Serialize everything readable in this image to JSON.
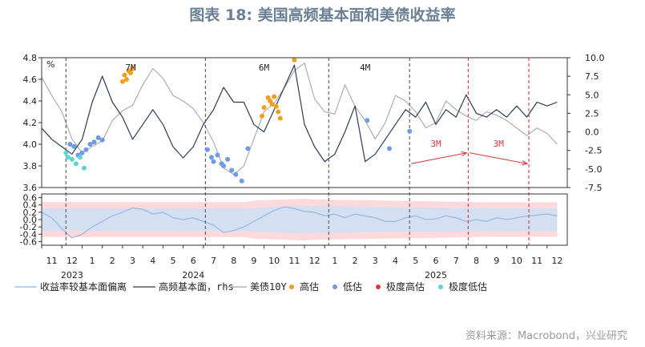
{
  "title": "图表 18: 美国高频基本面和美债收益率",
  "source": "资料来源：Macrobond，兴业研究",
  "colors": {
    "spread": "#8fb3e8",
    "fundamental": "#2b3a55",
    "treasury": "#a8a8a8",
    "high": "#f0a020",
    "low": "#6f9ae8",
    "extreme_high": "#d9363e",
    "extreme_low": "#5fd4d4",
    "band_inner": "#d4e0f2",
    "band_outer": "#fbd9dd"
  },
  "chart_data": {
    "type": "line",
    "time_unit": "months",
    "x_ticks": {
      "months": [
        "11",
        "12",
        "1",
        "2",
        "3",
        "4",
        "5",
        "6",
        "7",
        "8",
        "9",
        "10",
        "11",
        "12",
        "1",
        "2",
        "3",
        "4",
        "5",
        "6",
        "7",
        "8",
        "9",
        "10",
        "11",
        "12"
      ],
      "years": [
        "2023",
        "2024",
        "2025"
      ]
    },
    "annotations": [
      "7M",
      "6M",
      "4M",
      "3M",
      "3M"
    ],
    "legend": [
      "收益率较基本面偏离",
      "高频基本面，rhs",
      "美债10Y",
      "高估",
      "低估",
      "极度高估",
      "极度低估"
    ],
    "top_panel": {
      "left_axis": {
        "label": "%",
        "ylim": [
          3.6,
          4.8
        ],
        "ticks": [
          "4.8",
          "4.6",
          "4.4",
          "4.2",
          "4.0",
          "3.8",
          "3.6"
        ]
      },
      "right_axis": {
        "ylim": [
          -7.5,
          10.0
        ],
        "ticks": [
          "10.0",
          "7.5",
          "5.0",
          "2.5",
          "0.0",
          "-2.5",
          "-5.0",
          "-7.5"
        ]
      },
      "series": [
        {
          "name": "美债10Y",
          "axis": "left",
          "x": [
            0,
            0.5,
            1,
            1.5,
            2,
            2.5,
            3,
            3.5,
            4,
            4.5,
            5,
            5.5,
            6,
            6.5,
            7,
            7.5,
            8,
            8.5,
            9,
            9.5,
            10,
            10.5,
            11,
            11.5,
            12,
            12.5,
            13,
            13.5,
            14,
            14.5,
            15,
            15.5,
            16,
            16.5,
            17,
            17.5,
            18,
            18.5,
            19,
            19.5,
            20,
            20.5,
            21,
            21.5,
            22,
            22.5,
            23,
            23.5,
            24,
            24.5,
            25,
            25.5
          ],
          "y": [
            4.62,
            4.45,
            4.3,
            4.05,
            3.92,
            3.98,
            4.03,
            4.22,
            4.31,
            4.36,
            4.55,
            4.7,
            4.61,
            4.45,
            4.4,
            4.33,
            4.2,
            4.02,
            3.78,
            3.72,
            3.8,
            4.05,
            4.3,
            4.38,
            4.52,
            4.68,
            4.75,
            4.42,
            4.3,
            4.28,
            4.55,
            4.35,
            4.22,
            4.05,
            4.2,
            4.45,
            4.4,
            4.3,
            4.15,
            4.2,
            4.4,
            4.32,
            4.26,
            4.22,
            4.3,
            4.27,
            4.22,
            4.15,
            4.08,
            4.15,
            4.1,
            4.0
          ]
        },
        {
          "name": "高频基本面，rhs",
          "axis": "right",
          "x": [
            0,
            0.5,
            1,
            1.5,
            2,
            2.5,
            3,
            3.5,
            4,
            4.5,
            5,
            5.5,
            6,
            6.5,
            7,
            7.5,
            8,
            8.5,
            9,
            9.5,
            10,
            10.5,
            11,
            11.5,
            12,
            12.5,
            13,
            13.5,
            14,
            14.5,
            15,
            15.5,
            16,
            16.5,
            17,
            17.5,
            18,
            18.5,
            19,
            19.5,
            20,
            20.5,
            21,
            21.5,
            22,
            22.5,
            23,
            23.5,
            24,
            24.5,
            25,
            25.5
          ],
          "y": [
            0.5,
            -1.0,
            -2.0,
            -3.0,
            -1.0,
            4.0,
            7.5,
            4.0,
            2.0,
            -1.0,
            1.0,
            3.0,
            1.0,
            -2.0,
            -3.5,
            -2.0,
            1.0,
            3.0,
            6.0,
            4.0,
            4.0,
            1.0,
            0.0,
            3.0,
            6.0,
            9.0,
            1.0,
            -2.0,
            -4.0,
            -3.0,
            0.0,
            3.5,
            -4.0,
            -3.0,
            -1.0,
            1.0,
            3.0,
            2.0,
            4.0,
            1.0,
            3.0,
            2.0,
            5.0,
            2.5,
            2.0,
            3.0,
            2.0,
            3.5,
            2.0,
            4.0,
            3.5,
            4.0
          ]
        },
        {
          "name": "高估",
          "axis": "left",
          "x": [
            4.0,
            4.1,
            4.2,
            4.3,
            4.4,
            4.5,
            10.9,
            11.0,
            11.2,
            11.3,
            11.4,
            11.5,
            11.6,
            11.7,
            11.8,
            12.5
          ],
          "y": [
            4.58,
            4.64,
            4.6,
            4.68,
            4.66,
            4.7,
            4.26,
            4.34,
            4.43,
            4.4,
            4.37,
            4.44,
            4.35,
            4.3,
            4.24,
            4.78
          ]
        },
        {
          "name": "低估",
          "axis": "left",
          "x": [
            1.4,
            1.6,
            1.8,
            2.0,
            2.2,
            2.4,
            2.6,
            2.8,
            3.0,
            8.2,
            8.4,
            8.5,
            8.7,
            8.9,
            9.0,
            9.2,
            9.4,
            9.6,
            9.9,
            10.2,
            16.1,
            17.2,
            18.2
          ],
          "y": [
            4.0,
            3.98,
            3.9,
            3.92,
            3.95,
            4.0,
            4.02,
            4.06,
            4.04,
            3.95,
            3.88,
            3.84,
            3.9,
            3.82,
            3.8,
            3.86,
            3.76,
            3.72,
            3.66,
            3.96,
            4.22,
            3.96,
            4.12
          ]
        },
        {
          "name": "极度低估",
          "axis": "left",
          "x": [
            1.2,
            1.3,
            1.5,
            1.7,
            1.9,
            2.1
          ],
          "y": [
            3.92,
            3.88,
            3.86,
            3.82,
            3.88,
            3.78
          ]
        }
      ],
      "vertical_markers": [
        {
          "x": 1.2,
          "color": "gray"
        },
        {
          "x": 8.1,
          "color": "gray"
        },
        {
          "x": 14.2,
          "color": "gray"
        },
        {
          "x": 18.2,
          "color": "gray"
        },
        {
          "x": 21.1,
          "color": "red"
        },
        {
          "x": 24.1,
          "color": "red"
        }
      ]
    },
    "bottom_panel": {
      "ylim": [
        -0.7,
        0.7
      ],
      "ticks": [
        "0.6",
        "0.4",
        "0.2",
        "0.0",
        "-0.2",
        "-0.4",
        "-0.6"
      ],
      "series": [
        {
          "name": "收益率较基本面偏离",
          "x": [
            0,
            0.5,
            1,
            1.5,
            2,
            2.5,
            3,
            3.5,
            4,
            4.5,
            5,
            5.5,
            6,
            6.5,
            7,
            7.5,
            8,
            8.5,
            9,
            9.5,
            10,
            10.5,
            11,
            11.5,
            12,
            12.5,
            13,
            13.5,
            14,
            14.5,
            15,
            15.5,
            16,
            16.5,
            17,
            17.5,
            18,
            18.5,
            19,
            19.5,
            20,
            20.5,
            21,
            21.5,
            22,
            22.5,
            23,
            23.5,
            24,
            24.5,
            25,
            25.5
          ],
          "y": [
            0.2,
            0.05,
            -0.25,
            -0.5,
            -0.4,
            -0.2,
            -0.05,
            0.1,
            0.2,
            0.32,
            0.28,
            0.15,
            0.2,
            0.05,
            0.0,
            0.05,
            -0.05,
            -0.15,
            -0.35,
            -0.3,
            -0.2,
            -0.05,
            0.1,
            0.25,
            0.35,
            0.3,
            0.22,
            0.2,
            0.1,
            0.15,
            0.05,
            0.15,
            0.1,
            0.05,
            -0.05,
            -0.05,
            0.05,
            0.1,
            0.0,
            0.02,
            0.1,
            0.05,
            -0.05,
            0.0,
            -0.05,
            0.05,
            0.0,
            0.05,
            0.1,
            0.12,
            0.15,
            0.1
          ]
        },
        {
          "name": "band_inner_upper",
          "x": [
            0,
            10,
            10.5,
            13,
            13.5,
            17,
            22.2,
            25.5
          ],
          "y": [
            0.3,
            0.3,
            0.32,
            0.38,
            0.36,
            0.34,
            0.31,
            0.31
          ]
        },
        {
          "name": "band_inner_lower",
          "x": [
            0,
            10,
            10.5,
            13,
            13.5,
            17,
            22.2,
            25.5
          ],
          "y": [
            -0.3,
            -0.3,
            -0.32,
            -0.38,
            -0.36,
            -0.34,
            -0.31,
            -0.31
          ]
        },
        {
          "name": "band_outer_upper",
          "x": [
            0,
            10,
            10.5,
            13,
            13.5,
            17,
            22.2,
            25.5
          ],
          "y": [
            0.48,
            0.48,
            0.52,
            0.57,
            0.55,
            0.52,
            0.47,
            0.47
          ]
        },
        {
          "name": "band_outer_lower",
          "x": [
            0,
            10,
            10.5,
            13,
            13.5,
            17,
            22.2,
            25.5
          ],
          "y": [
            -0.48,
            -0.48,
            -0.52,
            -0.57,
            -0.55,
            -0.52,
            -0.47,
            -0.47
          ]
        }
      ]
    }
  }
}
